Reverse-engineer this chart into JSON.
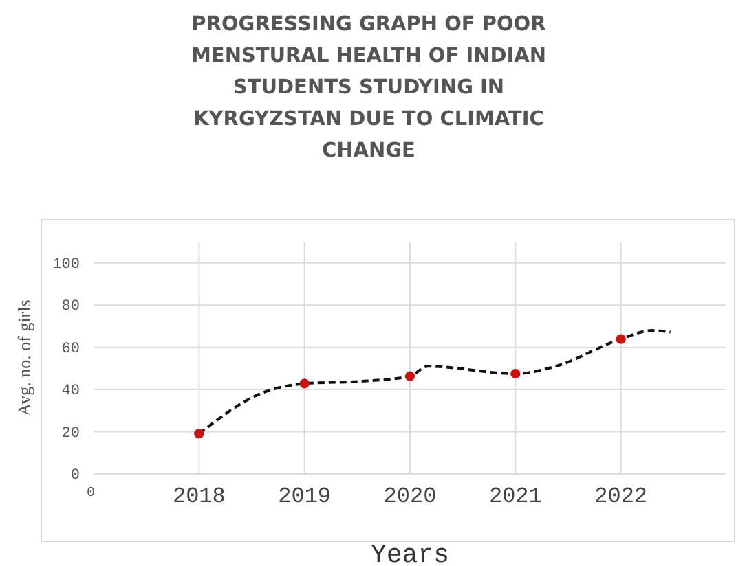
{
  "chart_data": {
    "type": "line",
    "title": "PROGRESSING GRAPH OF POOR MENSTURAL HEALTH OF INDIAN STUDENTS STUDYING IN KYRGYZSTAN DUE TO CLIMATIC CHANGE",
    "xlabel": "Years",
    "ylabel": "Avg. no. of girls",
    "xlim": [
      2017,
      2023
    ],
    "xticks": [
      2018,
      2019,
      2020,
      2021,
      2022
    ],
    "ylim": [
      0,
      110
    ],
    "yticks": [
      0,
      20,
      40,
      60,
      80,
      100
    ],
    "grid": true,
    "annotations": [
      "0"
    ],
    "series": [
      {
        "color": "#111111",
        "line_style": "dashed",
        "marker": "none",
        "x": [
          2018,
          2018.63,
          2019,
          2019.57,
          2020,
          2020.17,
          2021,
          2021.36,
          2022,
          2022.29,
          2022.47
        ],
        "values": [
          19.1,
          39,
          42.8,
          44,
          46.3,
          51,
          47.5,
          50.7,
          63.9,
          68,
          67.2
        ]
      },
      {
        "type": "scatter",
        "color": "#cc1111",
        "marker": "circle",
        "x": [
          2018,
          2019,
          2020,
          2021,
          2022
        ],
        "values": [
          19.1,
          42.8,
          46.3,
          47.5,
          63.9
        ]
      }
    ]
  }
}
